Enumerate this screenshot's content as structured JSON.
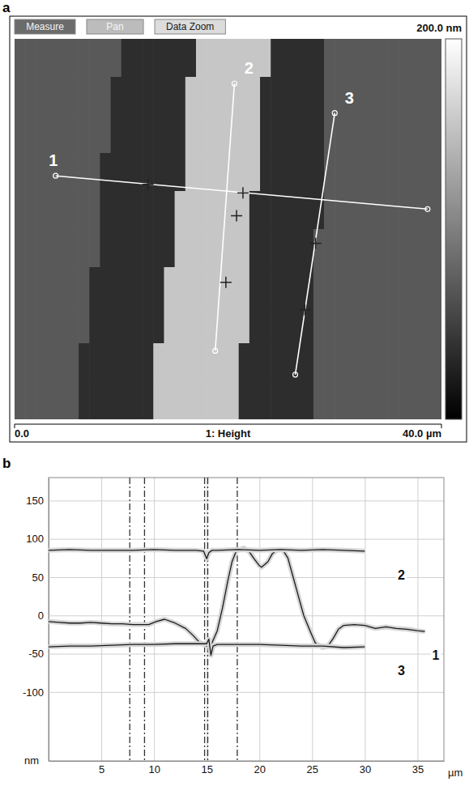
{
  "chart_data": [
    {
      "type": "heatmap",
      "panel_label": "a",
      "buttons": [
        "Measure",
        "Pan",
        "Data Zoom"
      ],
      "x_label": "1: Height",
      "xlim": [
        0,
        40
      ],
      "ylim": [
        0,
        40
      ],
      "xticks": [
        {
          "value": 0,
          "label": "0.0"
        },
        {
          "value": 40,
          "label": "40.0 µm"
        }
      ],
      "tick_labels": "x",
      "colorbar_range": [
        0,
        200
      ],
      "colorbar_ticks": [
        {
          "value": 200,
          "label": "200.0 nm"
        }
      ],
      "cells": [
        [
          70,
          70,
          70,
          70,
          70,
          70,
          70,
          70,
          70,
          70,
          35,
          35,
          35,
          35,
          35,
          35,
          35,
          155,
          155,
          155,
          155,
          155,
          155,
          155,
          35,
          35,
          35,
          35,
          35,
          70,
          70,
          70,
          70,
          70,
          70,
          70,
          70,
          70,
          70,
          70
        ],
        [
          70,
          70,
          70,
          70,
          70,
          70,
          70,
          70,
          70,
          35,
          35,
          35,
          35,
          35,
          35,
          35,
          155,
          155,
          155,
          155,
          155,
          155,
          155,
          35,
          35,
          35,
          35,
          35,
          35,
          70,
          70,
          70,
          70,
          70,
          70,
          70,
          70,
          70,
          70,
          70
        ],
        [
          70,
          70,
          70,
          70,
          70,
          70,
          70,
          70,
          70,
          35,
          35,
          35,
          35,
          35,
          35,
          35,
          155,
          155,
          155,
          155,
          155,
          155,
          155,
          35,
          35,
          35,
          35,
          35,
          35,
          70,
          70,
          70,
          70,
          70,
          70,
          70,
          70,
          70,
          70,
          70
        ],
        [
          70,
          70,
          70,
          70,
          70,
          70,
          70,
          70,
          35,
          35,
          35,
          35,
          35,
          35,
          35,
          35,
          155,
          155,
          155,
          155,
          155,
          155,
          155,
          35,
          35,
          35,
          35,
          35,
          35,
          70,
          70,
          70,
          70,
          70,
          70,
          70,
          70,
          70,
          70,
          70
        ],
        [
          70,
          70,
          70,
          70,
          70,
          70,
          70,
          70,
          35,
          35,
          35,
          35,
          35,
          35,
          35,
          155,
          155,
          155,
          155,
          155,
          155,
          155,
          35,
          35,
          35,
          35,
          35,
          35,
          35,
          70,
          70,
          70,
          70,
          70,
          70,
          70,
          70,
          70,
          70,
          70
        ],
        [
          70,
          70,
          70,
          70,
          70,
          70,
          70,
          70,
          35,
          35,
          35,
          35,
          35,
          35,
          35,
          155,
          155,
          155,
          155,
          155,
          155,
          155,
          35,
          35,
          35,
          35,
          35,
          35,
          70,
          70,
          70,
          70,
          70,
          70,
          70,
          70,
          70,
          70,
          70,
          70
        ],
        [
          70,
          70,
          70,
          70,
          70,
          70,
          70,
          35,
          35,
          35,
          35,
          35,
          35,
          35,
          155,
          155,
          155,
          155,
          155,
          155,
          155,
          155,
          35,
          35,
          35,
          35,
          35,
          35,
          70,
          70,
          70,
          70,
          70,
          70,
          70,
          70,
          70,
          70,
          70,
          70
        ],
        [
          70,
          70,
          70,
          70,
          70,
          70,
          70,
          35,
          35,
          35,
          35,
          35,
          35,
          35,
          155,
          155,
          155,
          155,
          155,
          155,
          155,
          155,
          35,
          35,
          35,
          35,
          35,
          35,
          70,
          70,
          70,
          70,
          70,
          70,
          70,
          70,
          70,
          70,
          70,
          70
        ],
        [
          70,
          70,
          70,
          70,
          70,
          70,
          35,
          35,
          35,
          35,
          35,
          35,
          35,
          155,
          155,
          155,
          155,
          155,
          155,
          155,
          155,
          35,
          35,
          35,
          35,
          35,
          35,
          35,
          70,
          70,
          70,
          70,
          70,
          70,
          70,
          70,
          70,
          70,
          70,
          70
        ],
        [
          70,
          70,
          70,
          70,
          70,
          70,
          35,
          35,
          35,
          35,
          35,
          35,
          35,
          155,
          155,
          155,
          155,
          155,
          155,
          155,
          155,
          35,
          35,
          35,
          35,
          35,
          35,
          35,
          70,
          70,
          70,
          70,
          70,
          70,
          70,
          70,
          70,
          70,
          70,
          70
        ]
      ],
      "profile_lines": [
        {
          "label": "1",
          "x": [
            3.85,
            38.7
          ],
          "y": [
            25.6,
            22.1
          ]
        },
        {
          "label": "2",
          "x": [
            20.6,
            18.8
          ],
          "y": [
            35.3,
            7.2
          ]
        },
        {
          "label": "3",
          "x": [
            30.0,
            26.3
          ],
          "y": [
            32.2,
            4.7
          ]
        }
      ],
      "cursors": [
        {
          "x": 12.5,
          "y": 24.7
        },
        {
          "x": 21.4,
          "y": 23.8
        },
        {
          "x": 20.8,
          "y": 21.4
        },
        {
          "x": 19.8,
          "y": 14.4
        },
        {
          "x": 28.2,
          "y": 18.5
        },
        {
          "x": 27.2,
          "y": 11.5
        }
      ]
    },
    {
      "type": "line",
      "panel_label": "b",
      "x_label": "µm",
      "y_label": "nm",
      "xlim": [
        0,
        37.5
      ],
      "ylim": [
        -190,
        180
      ],
      "xticks": [
        5,
        10,
        15,
        20,
        25,
        30,
        35
      ],
      "yticks": [
        -100,
        -50,
        0,
        50,
        100,
        150
      ],
      "grid": true,
      "cursor_lines": [
        7.7,
        9.1,
        14.8,
        15.1,
        17.9
      ],
      "series": [
        {
          "name": "1",
          "color": "#1a1a1a",
          "x": [
            0,
            1,
            2,
            3,
            4,
            5,
            6,
            7,
            8,
            9,
            9.5,
            10.2,
            11,
            12,
            13,
            13.7,
            14.3,
            15,
            15.5,
            16,
            16.5,
            17,
            17.4,
            17.8,
            18.5,
            19,
            19.5,
            20,
            20.2,
            20.8,
            21.2,
            21.6,
            22.2,
            22.7,
            23.2,
            23.7,
            24.2,
            24.8,
            25.3,
            26,
            26.5,
            27,
            27.5,
            28,
            29,
            30,
            31,
            32,
            33,
            34,
            35,
            35.7
          ],
          "values": [
            -8,
            -9,
            -10,
            -10,
            -9,
            -10,
            -11,
            -11,
            -12,
            -12,
            -12,
            -8,
            -5,
            -10,
            -17,
            -26,
            -35,
            -40,
            -36,
            -20,
            10,
            45,
            70,
            84,
            88,
            84,
            74,
            65,
            63,
            70,
            80,
            85,
            86,
            75,
            50,
            25,
            0,
            -20,
            -36,
            -42,
            -40,
            -30,
            -18,
            -13,
            -12,
            -13,
            -17,
            -15,
            -17,
            -18,
            -20,
            -21
          ]
        },
        {
          "name": "2",
          "color": "#1a1a1a",
          "x": [
            0,
            2,
            4,
            6,
            8,
            10,
            12,
            14,
            14.7,
            15,
            15.2,
            15.5,
            16,
            18,
            20,
            22,
            24,
            26,
            28,
            30
          ],
          "values": [
            85,
            86,
            85,
            85,
            85,
            86,
            85,
            85,
            84,
            74,
            82,
            85,
            85,
            86,
            85,
            86,
            85,
            86,
            85,
            84
          ]
        },
        {
          "name": "3",
          "color": "#1a1a1a",
          "x": [
            0,
            2,
            4,
            6,
            8,
            10,
            12,
            14,
            15,
            15.2,
            15.4,
            15.6,
            16,
            18,
            20,
            22,
            24,
            26,
            28,
            30
          ],
          "values": [
            -41,
            -40,
            -40,
            -39,
            -38,
            -38,
            -37,
            -37,
            -37,
            -31,
            -52,
            -40,
            -38,
            -38,
            -38,
            -39,
            -40,
            -40,
            -42,
            -41
          ]
        }
      ]
    }
  ]
}
